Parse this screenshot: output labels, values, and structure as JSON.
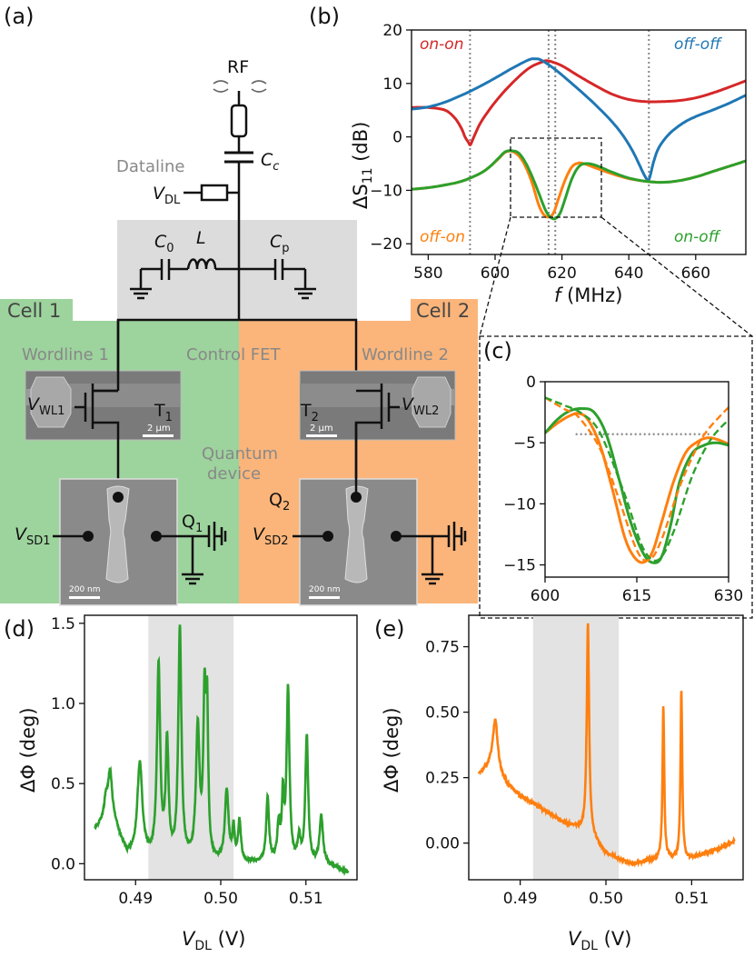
{
  "panel_labels": {
    "a": "(a)",
    "b": "(b)",
    "c": "(c)",
    "d": "(d)",
    "e": "(e)"
  },
  "colors": {
    "blue": "#1f77b4",
    "orange": "#ff7f0e",
    "green": "#2ca02c",
    "red": "#d62728",
    "cell1": "#9dd39d",
    "cell2": "#fbb57a",
    "gray_box": "#dcdcdc"
  },
  "circuit": {
    "rf_label": "RF",
    "cc_label": "C",
    "cc_sub": "c",
    "dataline_label": "Dataline",
    "vdl_label": "V",
    "vdl_sub": "DL",
    "c0_label": "C",
    "c0_sub": "0",
    "l_label": "L",
    "cp_label": "C",
    "cp_sub": "p",
    "cell1_label": "Cell 1",
    "cell2_label": "Cell 2",
    "wordline1_label": "Wordline 1",
    "wordline2_label": "Wordline 2",
    "control_fet_label": "Control FET",
    "vwl1_label": "V",
    "vwl1_sub": "WL1",
    "vwl2_label": "V",
    "vwl2_sub": "WL2",
    "t1_label": "T",
    "t1_sub": "1",
    "t2_label": "T",
    "t2_sub": "2",
    "quantum_device_label_1": "Quantum",
    "quantum_device_label_2": "device",
    "q1_label": "Q",
    "q1_sub": "1",
    "q2_label": "Q",
    "q2_sub": "2",
    "vsd1_label": "V",
    "vsd1_sub": "SD1",
    "vsd2_label": "V",
    "vsd2_sub": "SD2",
    "scale_fet": "2 µm",
    "scale_qd": "200 nm"
  },
  "chart_data": [
    {
      "id": "b",
      "type": "line",
      "xlabel": "f (MHz)",
      "ylabel": "ΔS11 (dB)",
      "xlim": [
        575,
        675
      ],
      "ylim": [
        -22,
        20
      ],
      "xticks": [
        580,
        600,
        620,
        640,
        660
      ],
      "yticks": [
        20,
        10,
        0,
        -10,
        -20
      ],
      "vlines": [
        592.5,
        616,
        618,
        646
      ],
      "series": [
        {
          "name": "on-on",
          "color": "#d62728",
          "x": [
            575,
            580,
            585,
            588,
            590,
            591,
            592,
            592.5,
            593,
            594,
            596,
            600,
            605,
            610,
            614,
            616,
            620,
            625,
            630,
            635,
            640,
            645,
            650,
            655,
            660,
            665,
            670,
            675
          ],
          "y": [
            5.5,
            5.5,
            5,
            3.5,
            1.5,
            0,
            -1,
            -1.5,
            -1,
            0.5,
            3,
            6.5,
            10,
            12.8,
            14,
            14.2,
            13.3,
            11.4,
            9.6,
            8,
            7,
            6.6,
            6.6,
            6.8,
            7.3,
            8.2,
            9.3,
            10.5
          ]
        },
        {
          "name": "off-off",
          "color": "#1f77b4",
          "x": [
            575,
            580,
            585,
            590,
            595,
            600,
            605,
            610,
            612,
            614,
            618,
            622,
            628,
            634,
            638,
            641,
            643,
            644.5,
            645.5,
            646,
            646.5,
            647.5,
            649,
            652,
            656,
            660,
            665,
            670,
            675
          ],
          "y": [
            5.2,
            5.6,
            6.5,
            7.8,
            9.3,
            11,
            12.8,
            14.4,
            14.6,
            14.3,
            12.6,
            10.5,
            7.2,
            3.5,
            0.5,
            -2.5,
            -5,
            -7,
            -8,
            -8,
            -7,
            -4.5,
            -2,
            0.5,
            2.5,
            3.8,
            5,
            6.3,
            7.8
          ]
        },
        {
          "name": "off-on",
          "color": "#ff7f0e",
          "x": [
            575,
            580,
            585,
            590,
            595,
            598,
            601,
            603,
            605,
            607,
            609,
            611,
            613,
            614.5,
            616,
            617.5,
            619,
            621,
            623,
            625,
            627,
            630,
            635,
            640,
            645,
            650,
            655,
            660,
            665,
            670,
            675
          ],
          "y": [
            -9.8,
            -9.5,
            -9,
            -8.3,
            -7,
            -5.8,
            -4.1,
            -2.9,
            -2.7,
            -3.5,
            -5.4,
            -8.5,
            -12.6,
            -14.5,
            -15,
            -14.2,
            -11.5,
            -8,
            -5.6,
            -4.9,
            -5.1,
            -5.8,
            -6.9,
            -7.8,
            -8.3,
            -8.5,
            -8.2,
            -7.5,
            -6.5,
            -5.5,
            -4.5
          ]
        },
        {
          "name": "on-off",
          "color": "#2ca02c",
          "x": [
            575,
            580,
            585,
            590,
            595,
            598,
            601,
            603,
            605,
            607,
            609,
            611,
            613,
            615,
            616.5,
            618,
            619.5,
            621,
            623,
            625,
            627,
            630,
            635,
            640,
            645,
            650,
            655,
            660,
            665,
            670,
            675
          ],
          "y": [
            -9.8,
            -9.5,
            -9,
            -8.3,
            -7,
            -5.8,
            -4,
            -2.8,
            -2.6,
            -3,
            -4.7,
            -7.3,
            -10.4,
            -13.6,
            -15,
            -15.3,
            -14.2,
            -11.5,
            -7.8,
            -5.6,
            -5,
            -5.3,
            -6.6,
            -7.7,
            -8.3,
            -8.5,
            -8.2,
            -7.5,
            -6.5,
            -5.5,
            -4.5
          ]
        }
      ]
    },
    {
      "id": "c",
      "type": "line",
      "xlim": [
        600,
        630
      ],
      "ylim": [
        -16,
        0
      ],
      "xticks": [
        600,
        615,
        630
      ],
      "yticks": [
        0,
        -5,
        -10,
        -15
      ],
      "hline": {
        "y": -4.3,
        "x0": 605,
        "x1": 627
      },
      "series": [
        {
          "name": "off-on",
          "color": "#ff7f0e",
          "x": [
            600,
            602,
            604,
            605.5,
            607,
            609,
            611,
            613,
            614.5,
            616,
            617.5,
            619,
            621,
            623,
            625,
            626.5,
            628,
            630
          ],
          "y": [
            -4.2,
            -3.4,
            -2.8,
            -2.6,
            -3.1,
            -5.2,
            -8.8,
            -12.7,
            -14.3,
            -14.8,
            -14,
            -11.6,
            -8.2,
            -5.8,
            -4.9,
            -4.6,
            -4.7,
            -5.1
          ]
        },
        {
          "name": "on-off",
          "color": "#2ca02c",
          "x": [
            600,
            602,
            604,
            606,
            608,
            610,
            612,
            614,
            616,
            617.5,
            619,
            620.5,
            622,
            624,
            626,
            628,
            630
          ],
          "y": [
            -4.2,
            -3.1,
            -2.4,
            -2.2,
            -2.5,
            -4.3,
            -7.8,
            -11.5,
            -14,
            -14.8,
            -14.4,
            -11.8,
            -8.2,
            -5.9,
            -5.2,
            -5,
            -5.2
          ]
        },
        {
          "name": "off-on-fit",
          "color": "#ff7f0e",
          "dashed": true,
          "x": [
            600,
            603,
            605.5,
            609,
            612,
            615,
            617,
            619,
            622,
            625,
            627,
            630
          ],
          "y": [
            -1.3,
            -2.2,
            -2.9,
            -5.5,
            -9.5,
            -13.8,
            -14.6,
            -13,
            -8.6,
            -5.2,
            -3.7,
            -2.1
          ]
        },
        {
          "name": "on-off-fit",
          "color": "#2ca02c",
          "dashed": true,
          "x": [
            600,
            603,
            606,
            609,
            613,
            616,
            618.5,
            621,
            624,
            627,
            630
          ],
          "y": [
            -1.3,
            -1.9,
            -2.6,
            -4.2,
            -9.2,
            -13.6,
            -14.6,
            -12.3,
            -7.8,
            -4.8,
            -3.1
          ]
        }
      ]
    },
    {
      "id": "d",
      "type": "line",
      "xlabel": "VDL (V)",
      "ylabel": "ΔΦ (deg)",
      "xlim": [
        0.484,
        0.516
      ],
      "ylim": [
        -0.1,
        1.55
      ],
      "xticks": [
        0.49,
        0.5,
        0.51
      ],
      "xtick_labels": [
        "0.49",
        "0.50",
        "0.51"
      ],
      "yticks": [
        0,
        0.5,
        1.0,
        1.5
      ],
      "ytick_labels": [
        "0.0",
        "0.5",
        "1.0",
        "1.5"
      ],
      "shade": [
        0.4915,
        0.5015
      ],
      "series": [
        {
          "name": "cell1",
          "color": "#2ca02c",
          "peaks": [
            [
              0.4865,
              0.1,
              0.0002
            ],
            [
              0.487,
              0.25,
              0.0003
            ],
            [
              0.4905,
              0.58,
              0.00035
            ],
            [
              0.4927,
              1.2,
              0.00022
            ],
            [
              0.4937,
              0.72,
              0.0002
            ],
            [
              0.4952,
              1.45,
              0.00022
            ],
            [
              0.4973,
              0.82,
              0.00025
            ],
            [
              0.4981,
              0.96,
              0.00018
            ],
            [
              0.4984,
              0.85,
              0.00015
            ],
            [
              0.5007,
              0.45,
              0.00025
            ],
            [
              0.5015,
              0.2,
              0.00015
            ],
            [
              0.5022,
              0.25,
              0.0002
            ],
            [
              0.5055,
              0.4,
              0.0002
            ],
            [
              0.5068,
              0.22,
              0.0002
            ],
            [
              0.5073,
              0.38,
              0.00015
            ],
            [
              0.5079,
              1.08,
              0.0002
            ],
            [
              0.5092,
              0.15,
              0.0002
            ],
            [
              0.5101,
              0.8,
              0.0002
            ],
            [
              0.5118,
              0.3,
              0.00025
            ]
          ],
          "base": [
            [
              0.4852,
              0.2
            ],
            [
              0.487,
              0.32
            ],
            [
              0.489,
              0.05
            ],
            [
              0.495,
              0.0
            ],
            [
              0.505,
              0.0
            ],
            [
              0.5132,
              -0.02
            ],
            [
              0.515,
              -0.06
            ]
          ],
          "x_range": [
            0.4852,
            0.515
          ]
        }
      ]
    },
    {
      "id": "e",
      "type": "line",
      "xlabel": "VDL (V)",
      "ylabel": "ΔΦ (deg)",
      "xlim": [
        0.484,
        0.516
      ],
      "ylim": [
        -0.14,
        0.87
      ],
      "xticks": [
        0.49,
        0.5,
        0.51
      ],
      "xtick_labels": [
        "0.49",
        "0.50",
        "0.51"
      ],
      "yticks": [
        0,
        0.25,
        0.5,
        0.75
      ],
      "ytick_labels": [
        "0.00",
        "0.25",
        "0.50",
        "0.75"
      ],
      "shade": [
        0.4915,
        0.5015
      ],
      "series": [
        {
          "name": "cell2",
          "color": "#ff7f0e",
          "peaks": [
            [
              0.4871,
              0.2,
              0.00035
            ],
            [
              0.4979,
              0.8,
              0.00016
            ],
            [
              0.5067,
              0.58,
              0.00012
            ],
            [
              0.5088,
              0.64,
              0.00012
            ]
          ],
          "base": [
            [
              0.4852,
              0.26
            ],
            [
              0.4865,
              0.29
            ],
            [
              0.4885,
              0.22
            ],
            [
              0.49,
              0.18
            ],
            [
              0.495,
              0.08
            ],
            [
              0.498,
              0.04
            ],
            [
              0.5,
              -0.04
            ],
            [
              0.503,
              -0.08
            ],
            [
              0.5065,
              -0.06
            ],
            [
              0.51,
              -0.06
            ],
            [
              0.514,
              -0.01
            ],
            [
              0.515,
              0.01
            ]
          ],
          "x_range": [
            0.4852,
            0.515
          ]
        }
      ]
    }
  ]
}
